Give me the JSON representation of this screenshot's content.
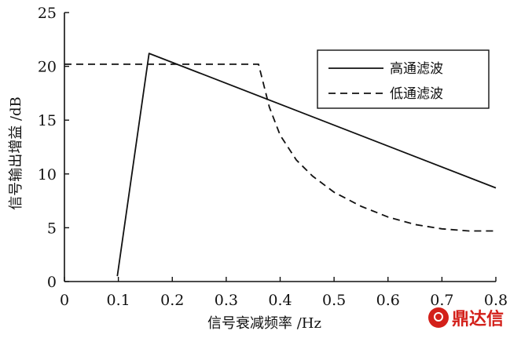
{
  "chart_data": {
    "type": "line",
    "title": "",
    "xlabel": "信号衰减频率 /Hz",
    "ylabel": "信号输出增益 /dB",
    "xlim": [
      0,
      0.8
    ],
    "ylim": [
      0,
      25
    ],
    "xticks": [
      0,
      0.1,
      0.2,
      0.3,
      0.4,
      0.5,
      0.6,
      0.7,
      0.8
    ],
    "xtick_labels": [
      "0",
      "0.1",
      "0.2",
      "0.3",
      "0.4",
      "0.5",
      "0.6",
      "0.7",
      "0.8"
    ],
    "yticks": [
      0,
      5,
      10,
      15,
      20,
      25
    ],
    "ytick_labels": [
      "0",
      "5",
      "10",
      "15",
      "20",
      "25"
    ],
    "grid": false,
    "legend_position": "top-right",
    "series": [
      {
        "name": "高通滤波",
        "style": "solid",
        "color": "#111111",
        "x": [
          0.098,
          0.157,
          0.8
        ],
        "y": [
          0.5,
          21.2,
          8.7
        ]
      },
      {
        "name": "低通滤波",
        "style": "dashed",
        "color": "#111111",
        "x": [
          0,
          0.36,
          0.37,
          0.38,
          0.4,
          0.43,
          0.46,
          0.5,
          0.55,
          0.6,
          0.65,
          0.7,
          0.75,
          0.8
        ],
        "y": [
          20.2,
          20.2,
          18.2,
          16.2,
          13.6,
          11.3,
          9.8,
          8.3,
          7.0,
          6.0,
          5.3,
          4.9,
          4.7,
          4.7
        ]
      }
    ]
  },
  "watermark": {
    "text": "鼎达信",
    "color": "#d3201a"
  }
}
